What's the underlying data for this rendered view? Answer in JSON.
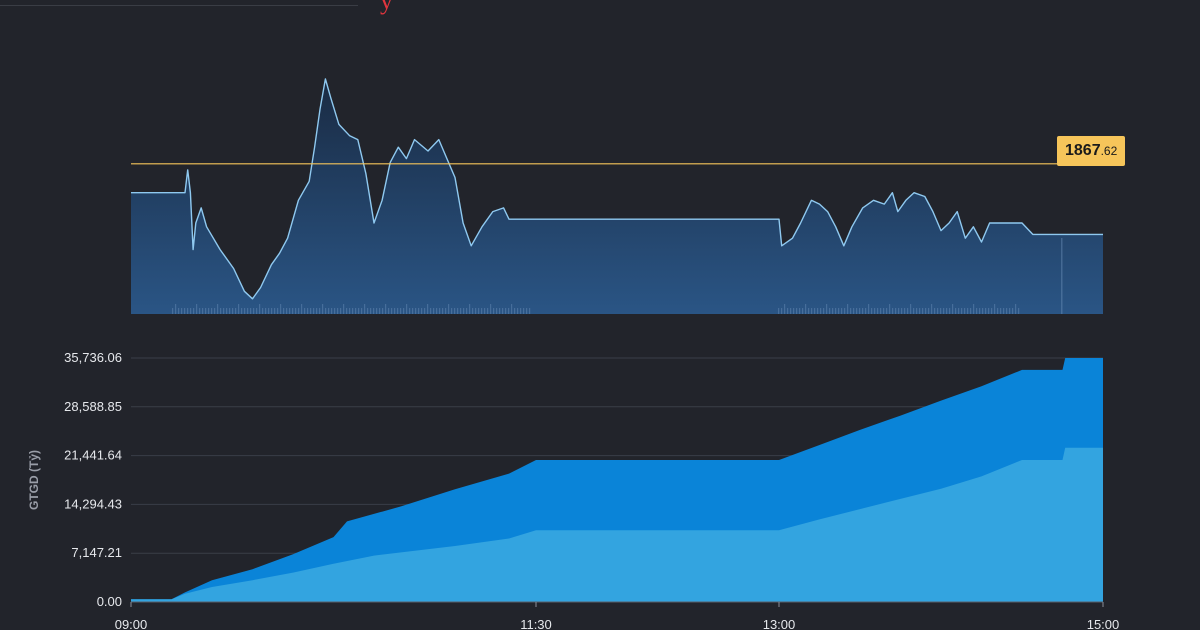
{
  "header": {
    "title_fragment": "y"
  },
  "price_badge": {
    "integer": "1867",
    "decimal": ".62"
  },
  "colors": {
    "background": "#22242b",
    "price_line": "#8fc9f0",
    "reference_line": "#f6c55a",
    "area_top": "#0a84d8",
    "area_bottom": "#33a4e0",
    "title_accent": "#e0353e"
  },
  "chart_data": [
    {
      "type": "line",
      "x_domain": [
        "09:00",
        "15:00"
      ],
      "reference_value": 1867.62,
      "points": [
        [
          "09:00",
          1860
        ],
        [
          "09:15",
          1860
        ],
        [
          "09:20",
          1860
        ],
        [
          "09:21",
          1866
        ],
        [
          "09:22",
          1860
        ],
        [
          "09:23",
          1845
        ],
        [
          "09:24",
          1852
        ],
        [
          "09:26",
          1856
        ],
        [
          "09:28",
          1851
        ],
        [
          "09:33",
          1845
        ],
        [
          "09:38",
          1840
        ],
        [
          "09:42",
          1834
        ],
        [
          "09:45",
          1832
        ],
        [
          "09:48",
          1835
        ],
        [
          "09:52",
          1841
        ],
        [
          "09:55",
          1844
        ],
        [
          "09:58",
          1848
        ],
        [
          "10:02",
          1858
        ],
        [
          "10:06",
          1863
        ],
        [
          "10:08",
          1872
        ],
        [
          "10:10",
          1882
        ],
        [
          "10:12",
          1890
        ],
        [
          "10:14",
          1885
        ],
        [
          "10:17",
          1878
        ],
        [
          "10:21",
          1875
        ],
        [
          "10:24",
          1874
        ],
        [
          "10:27",
          1865
        ],
        [
          "10:30",
          1852
        ],
        [
          "10:33",
          1858
        ],
        [
          "10:36",
          1868
        ],
        [
          "10:39",
          1872
        ],
        [
          "10:42",
          1869
        ],
        [
          "10:45",
          1874
        ],
        [
          "10:50",
          1871
        ],
        [
          "10:54",
          1874
        ],
        [
          "10:57",
          1869
        ],
        [
          "11:00",
          1864
        ],
        [
          "11:03",
          1852
        ],
        [
          "11:06",
          1846
        ],
        [
          "11:10",
          1851
        ],
        [
          "11:14",
          1855
        ],
        [
          "11:18",
          1856
        ],
        [
          "11:20",
          1853
        ],
        [
          "11:30",
          1853
        ],
        [
          "12:00",
          1853
        ],
        [
          "12:30",
          1853
        ],
        [
          "13:00",
          1853
        ],
        [
          "13:01",
          1846
        ],
        [
          "13:05",
          1848
        ],
        [
          "13:08",
          1852
        ],
        [
          "13:12",
          1858
        ],
        [
          "13:15",
          1857
        ],
        [
          "13:18",
          1855
        ],
        [
          "13:21",
          1851
        ],
        [
          "13:24",
          1846
        ],
        [
          "13:27",
          1851
        ],
        [
          "13:31",
          1856
        ],
        [
          "13:35",
          1858
        ],
        [
          "13:39",
          1857
        ],
        [
          "13:42",
          1860
        ],
        [
          "13:44",
          1855
        ],
        [
          "13:47",
          1858
        ],
        [
          "13:50",
          1860
        ],
        [
          "13:54",
          1859
        ],
        [
          "13:57",
          1855
        ],
        [
          "14:00",
          1850
        ],
        [
          "14:03",
          1852
        ],
        [
          "14:06",
          1855
        ],
        [
          "14:09",
          1848
        ],
        [
          "14:12",
          1851
        ],
        [
          "14:15",
          1847
        ],
        [
          "14:18",
          1852
        ],
        [
          "14:30",
          1852
        ],
        [
          "14:34",
          1849
        ],
        [
          "14:45",
          1849
        ],
        [
          "15:00",
          1849
        ]
      ]
    },
    {
      "type": "area",
      "x_domain": [
        "09:00",
        "15:00"
      ],
      "ylabel": "GTGD (Tỷ)",
      "yticks": [
        "35,736.06",
        "28,588.85",
        "21,441.64",
        "14,294.43",
        "7,147.21",
        "0.00"
      ],
      "ytick_values": [
        35736.06,
        28588.85,
        21441.64,
        14294.43,
        7147.21,
        0
      ],
      "ylim": [
        0,
        35736.06
      ],
      "xticks": [
        "09:00",
        "11:30",
        "13:00",
        "15:00"
      ],
      "grid": true,
      "series": [
        {
          "values": [
            [
              "09:00",
              400
            ],
            [
              "09:15",
              400
            ],
            [
              "09:20",
              1400
            ],
            [
              "09:30",
              3200
            ],
            [
              "09:45",
              4800
            ],
            [
              "10:00",
              7000
            ],
            [
              "10:15",
              9500
            ],
            [
              "10:20",
              11800
            ],
            [
              "10:40",
              14000
            ],
            [
              "11:00",
              16500
            ],
            [
              "11:20",
              18800
            ],
            [
              "11:30",
              20800
            ],
            [
              "12:00",
              20800
            ],
            [
              "13:00",
              20800
            ],
            [
              "13:15",
              23000
            ],
            [
              "13:30",
              25200
            ],
            [
              "13:45",
              27300
            ],
            [
              "14:00",
              29500
            ],
            [
              "14:15",
              31600
            ],
            [
              "14:30",
              34000
            ],
            [
              "14:45",
              34000
            ],
            [
              "14:46",
              35736.06
            ],
            [
              "15:00",
              35736.06
            ]
          ]
        },
        {
          "values": [
            [
              "09:00",
              400
            ],
            [
              "09:15",
              400
            ],
            [
              "09:20",
              1200
            ],
            [
              "09:30",
              2200
            ],
            [
              "09:45",
              3200
            ],
            [
              "10:00",
              4300
            ],
            [
              "10:15",
              5600
            ],
            [
              "10:30",
              6800
            ],
            [
              "11:00",
              8200
            ],
            [
              "11:20",
              9300
            ],
            [
              "11:30",
              10500
            ],
            [
              "12:00",
              10500
            ],
            [
              "13:00",
              10500
            ],
            [
              "13:15",
              12100
            ],
            [
              "13:30",
              13600
            ],
            [
              "13:45",
              15100
            ],
            [
              "14:00",
              16600
            ],
            [
              "14:15",
              18400
            ],
            [
              "14:30",
              20800
            ],
            [
              "14:45",
              20800
            ],
            [
              "14:46",
              22600
            ],
            [
              "15:00",
              22600
            ]
          ]
        }
      ]
    }
  ]
}
